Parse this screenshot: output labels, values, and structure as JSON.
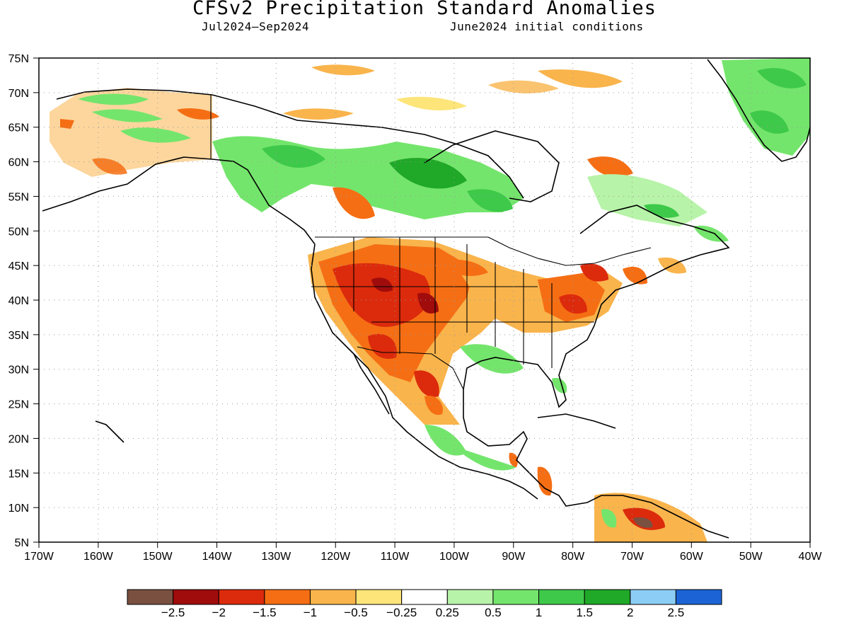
{
  "map": {
    "title": "CFSv2 Precipitation Standard Anomalies",
    "period": "Jul2024–Sep2024",
    "initial_conditions": "June2024 initial conditions",
    "lat_labels": [
      "75N",
      "70N",
      "65N",
      "60N",
      "55N",
      "50N",
      "45N",
      "40N",
      "35N",
      "30N",
      "25N",
      "20N",
      "15N",
      "10N",
      "5N"
    ],
    "lon_labels": [
      "170W",
      "160W",
      "150W",
      "140W",
      "130W",
      "120W",
      "110W",
      "100W",
      "90W",
      "80W",
      "70W",
      "60W",
      "50W",
      "40W"
    ],
    "lat_range": [
      5,
      75
    ],
    "lon_range": [
      -170,
      -40
    ],
    "grid": "dotted"
  },
  "colorbar": {
    "colors": [
      "#7a5040",
      "#a00c0c",
      "#dc2a0c",
      "#f56e14",
      "#f9b44c",
      "#fde57a",
      "#ffffff",
      "#b7f3a8",
      "#74e56c",
      "#3ec94a",
      "#20a828",
      "#8ccdf5",
      "#1c64d6"
    ],
    "labels": [
      "−2.5",
      "−2",
      "−1.5",
      "−1",
      "−0.5",
      "−0.25",
      "0.25",
      "0.5",
      "1",
      "1.5",
      "2",
      "2.5"
    ]
  }
}
